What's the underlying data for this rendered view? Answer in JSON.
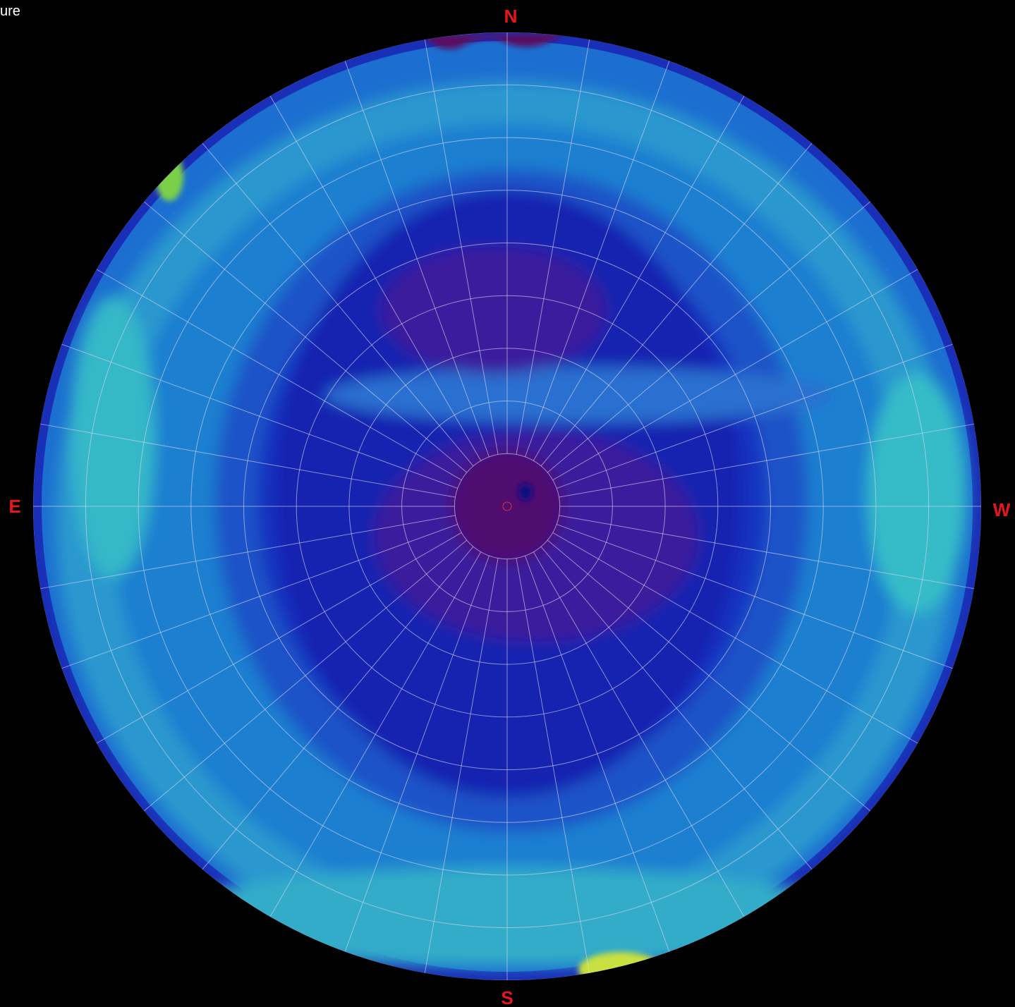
{
  "header": {
    "title_fragment": "ure"
  },
  "compass": {
    "north": "N",
    "east": "E",
    "west": "W",
    "south": "S"
  }
}
